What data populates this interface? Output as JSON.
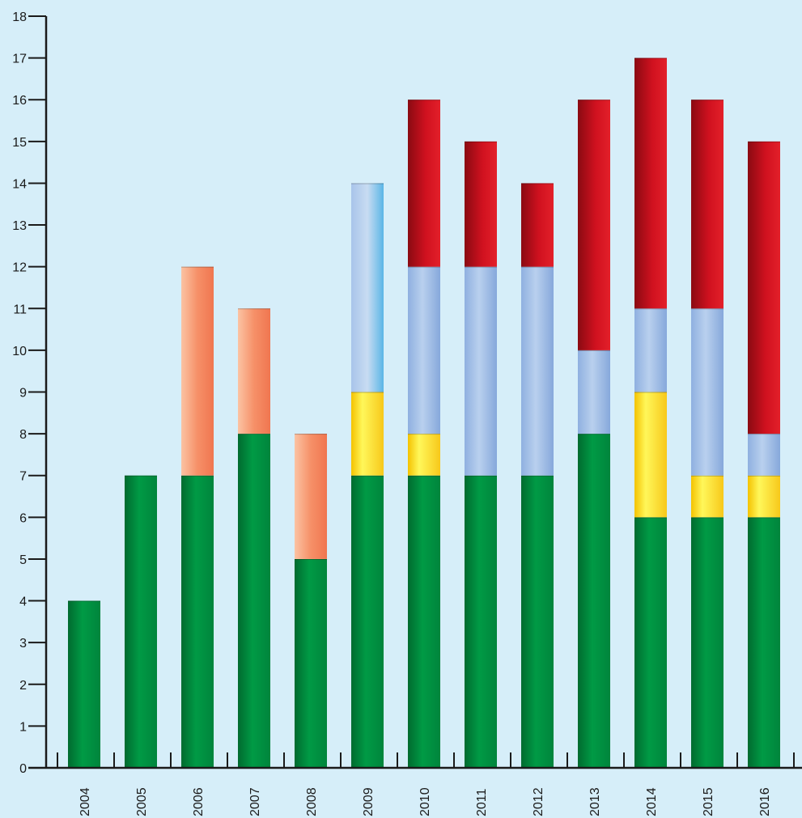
{
  "chart_data": {
    "type": "bar",
    "stacked": true,
    "title": "",
    "xlabel": "",
    "ylabel": "",
    "categories": [
      "2004",
      "2005",
      "2006",
      "2007",
      "2008",
      "2009",
      "2010",
      "2011",
      "2012",
      "2013",
      "2014",
      "2015",
      "2016"
    ],
    "ylim": [
      0,
      18
    ],
    "yticks": [
      0,
      1,
      2,
      3,
      4,
      5,
      6,
      7,
      8,
      9,
      10,
      11,
      12,
      13,
      14,
      15,
      16,
      17,
      18
    ],
    "grid": false,
    "legend": "none",
    "series": [
      {
        "color": "#008a3e",
        "values": [
          4,
          7,
          7,
          8,
          5,
          7,
          7,
          7,
          7,
          8,
          6,
          6,
          6
        ]
      },
      {
        "color": "#f4855c",
        "values": [
          0,
          0,
          5,
          3,
          3,
          0,
          0,
          0,
          0,
          0,
          0,
          0,
          0
        ]
      },
      {
        "color": "#ffe21a",
        "values": [
          0,
          0,
          0,
          0,
          0,
          2,
          1,
          0,
          0,
          0,
          3,
          1,
          1
        ]
      },
      {
        "color": "#9ab8e2",
        "values": [
          0,
          0,
          0,
          0,
          0,
          5,
          4,
          5,
          5,
          2,
          2,
          4,
          1
        ]
      },
      {
        "color": "#c8101e",
        "values": [
          0,
          0,
          0,
          0,
          0,
          0,
          4,
          3,
          2,
          6,
          6,
          5,
          7
        ]
      }
    ]
  }
}
